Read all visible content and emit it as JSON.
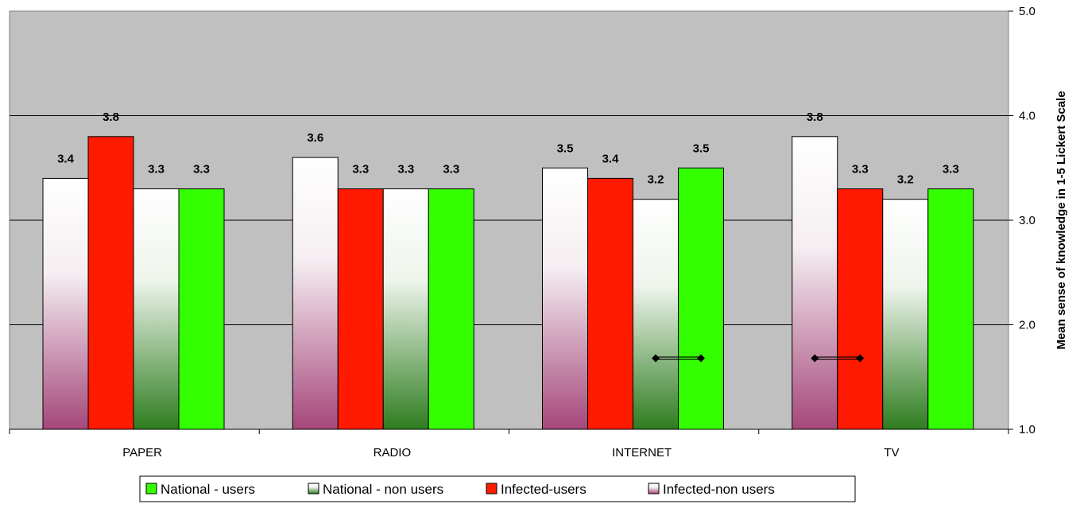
{
  "chart_data": {
    "type": "bar",
    "title": "",
    "xlabel": "",
    "ylabel": "Mean sense of knowledge in 1-5 Lickert Scale",
    "y_axis_side": "right",
    "ylim": [
      1.0,
      5.0
    ],
    "yticks": [
      "1.0",
      "2.0",
      "3.0",
      "4.0",
      "5.0"
    ],
    "grid": true,
    "legend_position": "bottom",
    "categories": [
      "PAPER",
      "RADIO",
      "INTERNET",
      "TV"
    ],
    "bar_order": [
      "Infected-non users",
      "Infected-users",
      "National - non users",
      "National - users"
    ],
    "series": [
      {
        "name": "Infected-non users",
        "values": [
          3.4,
          3.6,
          3.5,
          3.8
        ],
        "labels": [
          "3.4",
          "3.6",
          "3.5",
          "3.8"
        ],
        "fill": "gradient",
        "gradient_from": "#ffffff",
        "gradient_to": "#a5477a"
      },
      {
        "name": "Infected-users",
        "values": [
          3.8,
          3.3,
          3.4,
          3.3
        ],
        "labels": [
          "3.8",
          "3.3",
          "3.4",
          "3.3"
        ],
        "fill": "solid",
        "color": "#ff1a00"
      },
      {
        "name": "National - non users",
        "values": [
          3.3,
          3.3,
          3.2,
          3.2
        ],
        "labels": [
          "3.3",
          "3.3",
          "3.2",
          "3.2"
        ],
        "fill": "gradient",
        "gradient_from": "#ffffff",
        "gradient_to": "#2e7d1f"
      },
      {
        "name": "National - users",
        "values": [
          3.3,
          3.3,
          3.5,
          3.3
        ],
        "labels": [
          "3.3",
          "3.3",
          "3.5",
          "3.3"
        ],
        "fill": "solid",
        "color": "#33ff00"
      }
    ],
    "legend_order": [
      "National - users",
      "National - non users",
      "Infected-users",
      "Infected-non users"
    ],
    "significance_markers": [
      {
        "category": "INTERNET",
        "between": [
          "National - non users",
          "National - users"
        ],
        "y": 1.68
      },
      {
        "category": "TV",
        "between": [
          "Infected-non users",
          "Infected-users"
        ],
        "y": 1.68
      }
    ],
    "plot_background": "#c0c0c0"
  }
}
